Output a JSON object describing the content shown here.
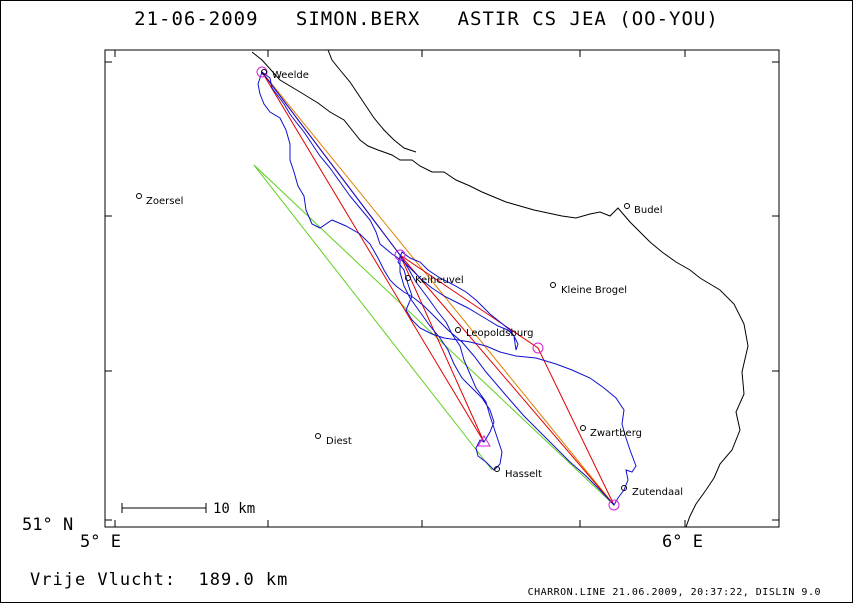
{
  "title": "21-06-2009   SIMON.BERX   ASTIR CS JEA (OO-YOU)",
  "axes": {
    "lat_label": "51° N",
    "lon_labels": [
      "5° E",
      "6° E"
    ]
  },
  "scale_bar": {
    "label": "10 km"
  },
  "towns": [
    {
      "name": "Weelde"
    },
    {
      "name": "Zoersel"
    },
    {
      "name": "Budel"
    },
    {
      "name": "Keiheuvel"
    },
    {
      "name": "Kleine Brogel"
    },
    {
      "name": "Leopoldsburg"
    },
    {
      "name": "Zwartberg"
    },
    {
      "name": "Diest"
    },
    {
      "name": "Hasselt"
    },
    {
      "name": "Zutendaal"
    }
  ],
  "footer": {
    "distance": "Vrije Vlucht:  189.0 km",
    "credits": "CHARRON.LINE 21.06.2009, 20:37:22, DISLIN 9.0"
  },
  "colors": {
    "track": "#1010d0",
    "task_line": "#e00000",
    "start_line": "#60d020",
    "orange_line": "#e08000",
    "turnpoint": "#d020d0",
    "border": "#000000"
  }
}
